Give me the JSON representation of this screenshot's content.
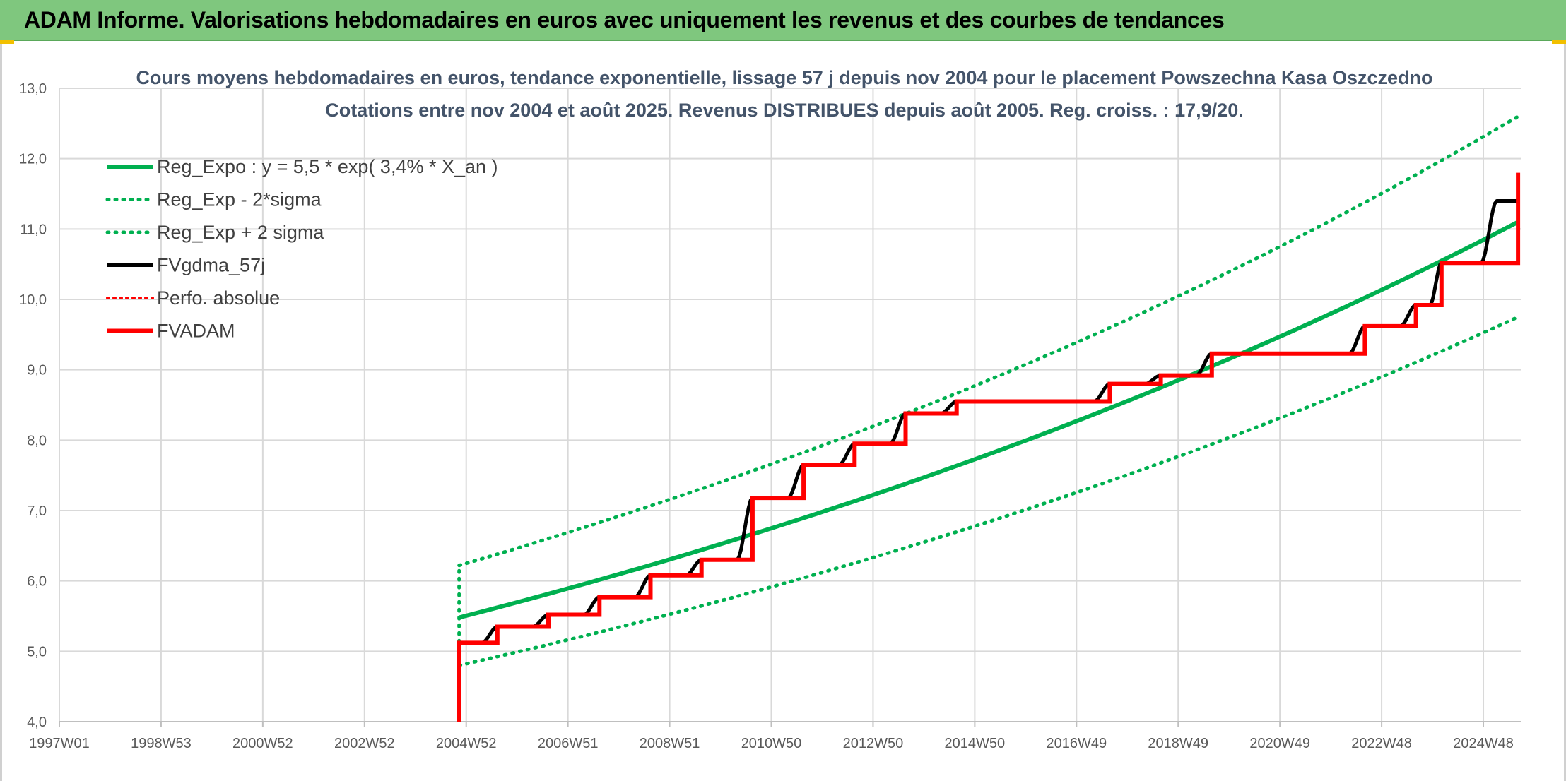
{
  "header": {
    "title": "ADAM Informe. Valorisations hebdomadaires en euros avec uniquement les revenus et des courbes de tendances"
  },
  "chart_data": {
    "type": "line",
    "title": "Cours moyens hebdomadaires en euros, tendance exponentielle, lissage 57 j depuis nov 2004 pour le placement Powszechna Kasa Oszczedno",
    "subtitle": "Cotations entre nov 2004 et août 2025. Revenus DISTRIBUES depuis août 2005. Reg. croiss. : 17,9/20.",
    "xlabel": "",
    "ylabel": "",
    "x_range": [
      "1997W01",
      "2025W35"
    ],
    "ylim": [
      4.0,
      13.0
    ],
    "y_ticks": [
      "4,0",
      "5,0",
      "6,0",
      "7,0",
      "8,0",
      "9,0",
      "10,0",
      "11,0",
      "12,0",
      "13,0"
    ],
    "x_ticks": [
      "1997W01",
      "1998W53",
      "2000W52",
      "2002W52",
      "2004W52",
      "2006W51",
      "2008W51",
      "2010W50",
      "2012W50",
      "2014W50",
      "2016W49",
      "2018W49",
      "2020W49",
      "2022W48",
      "2024W48"
    ],
    "grid": true,
    "legend_position": "top-left",
    "series": [
      {
        "name": "Reg_Expo : y = 5,5 * exp( 3,4% *  X_an )",
        "color": "#00b050",
        "style": "solid",
        "x": [
          "2004-11",
          "2025-08"
        ],
        "values": [
          5.48,
          11.1
        ]
      },
      {
        "name": "Reg_Exp - 2*sigma",
        "color": "#00b050",
        "style": "dotted",
        "x": [
          "2004-11",
          "2025-08"
        ],
        "values": [
          4.8,
          9.75
        ]
      },
      {
        "name": "Reg_Exp + 2 sigma",
        "color": "#00b050",
        "style": "dotted",
        "x": [
          "2004-11",
          "2025-08"
        ],
        "values": [
          6.22,
          12.6
        ]
      },
      {
        "name": "FVgdma_57j",
        "color": "#000000",
        "style": "solid",
        "x": [
          "2004-11",
          "2005-08",
          "2006-08",
          "2007-08",
          "2008-08",
          "2009-08",
          "2010-08",
          "2011-08",
          "2012-08",
          "2013-08",
          "2014-08",
          "2017-08",
          "2018-08",
          "2019-08",
          "2022-08",
          "2023-08",
          "2024-02",
          "2025-03",
          "2025-08"
        ],
        "values": [
          5.12,
          5.35,
          5.52,
          5.77,
          6.08,
          6.3,
          7.18,
          7.65,
          7.95,
          8.38,
          8.55,
          8.8,
          8.92,
          9.23,
          9.62,
          9.92,
          10.52,
          11.4,
          11.4
        ]
      },
      {
        "name": "Perfo. absolue",
        "color": "#ff0000",
        "style": "dotted",
        "x": [],
        "values": []
      },
      {
        "name": "FVADAM",
        "color": "#ff0000",
        "style": "solid",
        "x": [
          "2004-11",
          "2005-08",
          "2006-08",
          "2007-08",
          "2008-08",
          "2009-08",
          "2010-08",
          "2011-08",
          "2012-08",
          "2013-08",
          "2014-08",
          "2017-08",
          "2018-08",
          "2019-08",
          "2022-08",
          "2023-08",
          "2024-02",
          "2025-08"
        ],
        "values": [
          5.12,
          5.35,
          5.52,
          5.77,
          6.08,
          6.3,
          7.18,
          7.65,
          7.95,
          8.38,
          8.55,
          8.8,
          8.92,
          9.23,
          9.62,
          9.92,
          10.52,
          11.8
        ]
      }
    ]
  }
}
